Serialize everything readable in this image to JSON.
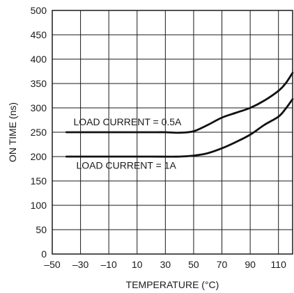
{
  "chart_data": {
    "type": "line",
    "title": "",
    "xlabel": "TEMPERATURE (°C)",
    "ylabel": "ON TIME (ns)",
    "xlim": [
      -50,
      120
    ],
    "ylim": [
      0,
      500
    ],
    "x_ticks": [
      -50,
      -30,
      -10,
      10,
      30,
      50,
      70,
      90,
      110
    ],
    "x_tick_labels": [
      "–50",
      "–30",
      "–10",
      "10",
      "30",
      "50",
      "70",
      "90",
      "110"
    ],
    "y_ticks": [
      0,
      50,
      100,
      150,
      200,
      250,
      300,
      350,
      400,
      450,
      500
    ],
    "y_tick_labels": [
      "0",
      "50",
      "100",
      "150",
      "200",
      "250",
      "300",
      "350",
      "400",
      "450",
      "500"
    ],
    "grid": true,
    "series": [
      {
        "label": "LOAD CURRENT = 0.5A",
        "points": [
          [
            -40,
            250
          ],
          [
            -20,
            250
          ],
          [
            0,
            250
          ],
          [
            20,
            250
          ],
          [
            30,
            250
          ],
          [
            40,
            249
          ],
          [
            50,
            252
          ],
          [
            60,
            265
          ],
          [
            70,
            280
          ],
          [
            80,
            290
          ],
          [
            90,
            300
          ],
          [
            100,
            315
          ],
          [
            110,
            335
          ],
          [
            115,
            350
          ],
          [
            120,
            372
          ]
        ]
      },
      {
        "label": "LOAD CURRENT = 1A",
        "points": [
          [
            -40,
            200
          ],
          [
            -20,
            200
          ],
          [
            0,
            200
          ],
          [
            20,
            200
          ],
          [
            40,
            200
          ],
          [
            50,
            202
          ],
          [
            60,
            207
          ],
          [
            70,
            217
          ],
          [
            80,
            230
          ],
          [
            90,
            245
          ],
          [
            100,
            265
          ],
          [
            110,
            282
          ],
          [
            115,
            298
          ],
          [
            120,
            318
          ]
        ]
      }
    ],
    "annotations": [
      {
        "text": "LOAD CURRENT = 0.5A",
        "x": -35,
        "y": 264
      },
      {
        "text": "LOAD CURRENT = 1A",
        "x": -33,
        "y": 175
      }
    ]
  }
}
